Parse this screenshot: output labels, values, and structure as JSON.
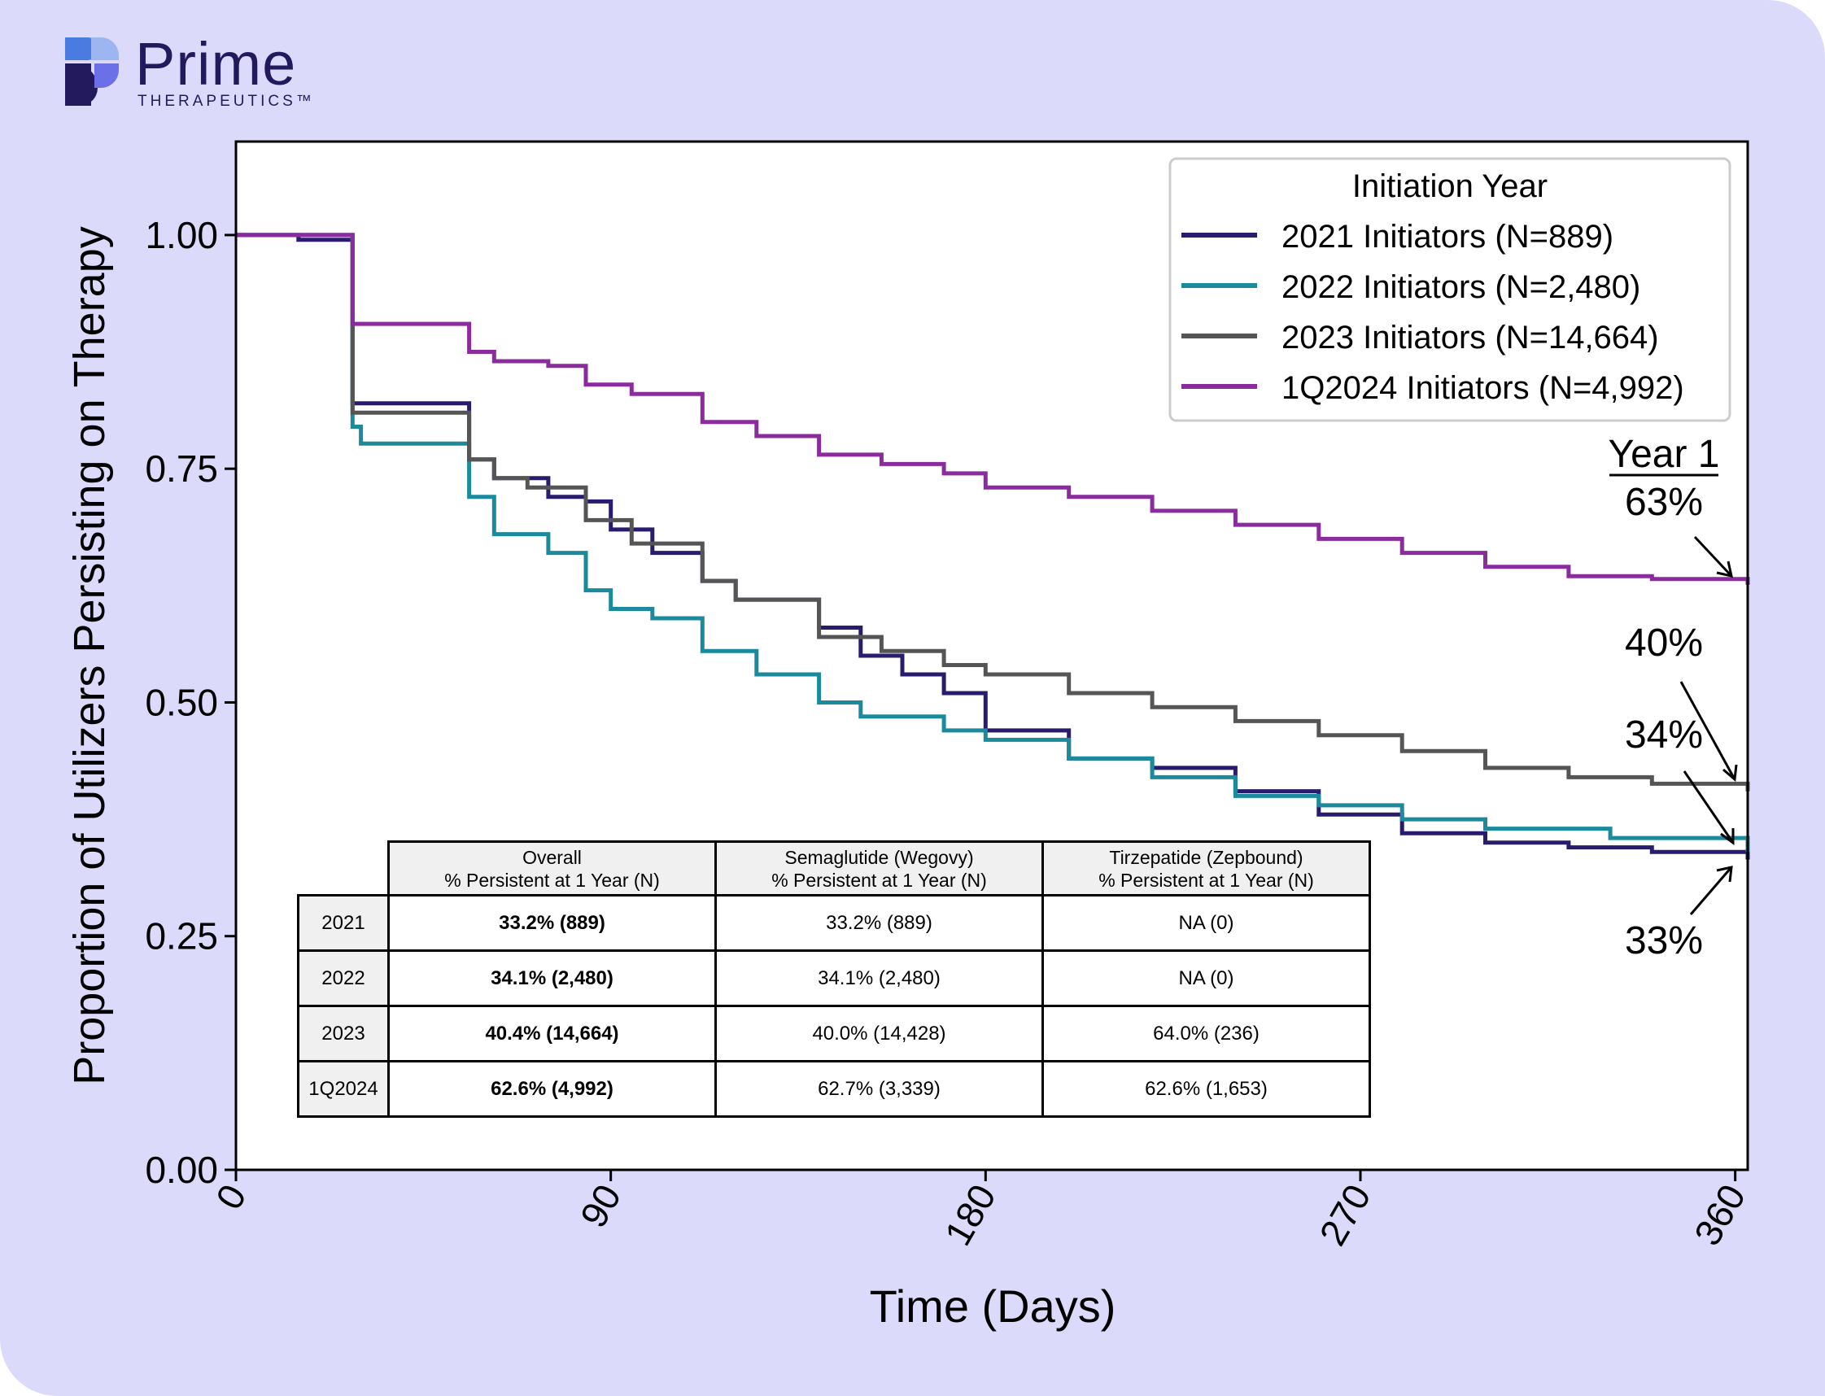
{
  "brand": {
    "name": "Prime",
    "tagline": "THERAPEUTICS™"
  },
  "colors": {
    "background": "#dcdafa",
    "series_2021": "#2a1b6e",
    "series_2022": "#1b8a9c",
    "series_2023": "#555555",
    "series_1Q2024": "#8a2c9e"
  },
  "chart_data": {
    "type": "line",
    "step": true,
    "xlabel": "Time (Days)",
    "ylabel": "Proportion of Utilizers Persisting on Therapy",
    "xlim": [
      0,
      363
    ],
    "ylim": [
      0,
      1.1
    ],
    "xticks": [
      0,
      90,
      180,
      270,
      360
    ],
    "xtick_labels": [
      "0",
      "90",
      "180",
      "270",
      "360"
    ],
    "yticks": [
      0,
      0.25,
      0.5,
      0.75,
      1.0
    ],
    "ytick_labels": [
      "0.00",
      "0.25",
      "0.50",
      "0.75",
      "1.00"
    ],
    "grid": false,
    "legend": {
      "title": "Initiation Year",
      "position": "top-right"
    },
    "series": [
      {
        "name": "2021 Initiators (N=889)",
        "color": "#2a1b6e",
        "points": [
          [
            0,
            1.0
          ],
          [
            15,
            0.995
          ],
          [
            28,
            0.995
          ],
          [
            28,
            0.82
          ],
          [
            56,
            0.81
          ],
          [
            56,
            0.76
          ],
          [
            62,
            0.74
          ],
          [
            75,
            0.72
          ],
          [
            84,
            0.715
          ],
          [
            90,
            0.685
          ],
          [
            100,
            0.66
          ],
          [
            112,
            0.63
          ],
          [
            120,
            0.61
          ],
          [
            140,
            0.58
          ],
          [
            150,
            0.55
          ],
          [
            160,
            0.53
          ],
          [
            170,
            0.51
          ],
          [
            180,
            0.47
          ],
          [
            200,
            0.44
          ],
          [
            220,
            0.43
          ],
          [
            240,
            0.405
          ],
          [
            260,
            0.38
          ],
          [
            280,
            0.36
          ],
          [
            300,
            0.35
          ],
          [
            320,
            0.345
          ],
          [
            340,
            0.34
          ],
          [
            363,
            0.332
          ]
        ]
      },
      {
        "name": "2022 Initiators (N=2,480)",
        "color": "#1b8a9c",
        "points": [
          [
            0,
            1.0
          ],
          [
            28,
            1.0
          ],
          [
            28,
            0.795
          ],
          [
            30,
            0.777
          ],
          [
            56,
            0.777
          ],
          [
            56,
            0.72
          ],
          [
            62,
            0.68
          ],
          [
            75,
            0.66
          ],
          [
            84,
            0.65
          ],
          [
            84,
            0.62
          ],
          [
            90,
            0.6
          ],
          [
            100,
            0.59
          ],
          [
            112,
            0.575
          ],
          [
            112,
            0.555
          ],
          [
            125,
            0.53
          ],
          [
            140,
            0.515
          ],
          [
            140,
            0.5
          ],
          [
            150,
            0.485
          ],
          [
            170,
            0.47
          ],
          [
            180,
            0.46
          ],
          [
            200,
            0.44
          ],
          [
            220,
            0.42
          ],
          [
            240,
            0.4
          ],
          [
            260,
            0.39
          ],
          [
            280,
            0.375
          ],
          [
            300,
            0.365
          ],
          [
            330,
            0.355
          ],
          [
            363,
            0.34
          ]
        ]
      },
      {
        "name": "2023 Initiators (N=14,664)",
        "color": "#555555",
        "points": [
          [
            0,
            1.0
          ],
          [
            28,
            1.0
          ],
          [
            28,
            0.81
          ],
          [
            56,
            0.81
          ],
          [
            56,
            0.76
          ],
          [
            62,
            0.74
          ],
          [
            70,
            0.73
          ],
          [
            84,
            0.715
          ],
          [
            84,
            0.695
          ],
          [
            95,
            0.67
          ],
          [
            112,
            0.645
          ],
          [
            112,
            0.63
          ],
          [
            120,
            0.61
          ],
          [
            140,
            0.59
          ],
          [
            140,
            0.57
          ],
          [
            155,
            0.555
          ],
          [
            170,
            0.54
          ],
          [
            180,
            0.53
          ],
          [
            200,
            0.51
          ],
          [
            220,
            0.495
          ],
          [
            240,
            0.48
          ],
          [
            260,
            0.465
          ],
          [
            280,
            0.448
          ],
          [
            300,
            0.43
          ],
          [
            320,
            0.42
          ],
          [
            340,
            0.413
          ],
          [
            363,
            0.405
          ]
        ]
      },
      {
        "name": "1Q2024 Initiators (N=4,992)",
        "color": "#8a2c9e",
        "points": [
          [
            0,
            1.0
          ],
          [
            28,
            1.0
          ],
          [
            28,
            0.905
          ],
          [
            56,
            0.905
          ],
          [
            56,
            0.875
          ],
          [
            62,
            0.865
          ],
          [
            75,
            0.86
          ],
          [
            84,
            0.855
          ],
          [
            84,
            0.84
          ],
          [
            95,
            0.83
          ],
          [
            112,
            0.815
          ],
          [
            112,
            0.8
          ],
          [
            125,
            0.785
          ],
          [
            140,
            0.775
          ],
          [
            140,
            0.765
          ],
          [
            155,
            0.755
          ],
          [
            170,
            0.745
          ],
          [
            180,
            0.73
          ],
          [
            200,
            0.72
          ],
          [
            220,
            0.705
          ],
          [
            240,
            0.69
          ],
          [
            260,
            0.675
          ],
          [
            280,
            0.66
          ],
          [
            300,
            0.645
          ],
          [
            320,
            0.635
          ],
          [
            340,
            0.632
          ],
          [
            363,
            0.626
          ]
        ]
      }
    ],
    "annotations": {
      "year1_title": "Year 1",
      "val_1Q2024": "63%",
      "val_2023": "40%",
      "val_2022": "34%",
      "val_2021": "33%"
    }
  },
  "table": {
    "headers": [
      {
        "line1": "Overall",
        "line2": "% Persistent at 1 Year (N)"
      },
      {
        "line1": "Semaglutide (Wegovy)",
        "line2": "% Persistent at 1 Year (N)"
      },
      {
        "line1": "Tirzepatide (Zepbound)",
        "line2": "% Persistent at 1 Year (N)"
      }
    ],
    "rows": [
      {
        "year": "2021",
        "overall": "33.2% (889)",
        "semaglutide": "33.2% (889)",
        "tirzepatide": "NA (0)"
      },
      {
        "year": "2022",
        "overall": "34.1% (2,480)",
        "semaglutide": "34.1% (2,480)",
        "tirzepatide": "NA (0)"
      },
      {
        "year": "2023",
        "overall": "40.4% (14,664)",
        "semaglutide": "40.0% (14,428)",
        "tirzepatide": "64.0% (236)"
      },
      {
        "year": "1Q2024",
        "overall": "62.6% (4,992)",
        "semaglutide": "62.7% (3,339)",
        "tirzepatide": "62.6% (1,653)"
      }
    ]
  }
}
